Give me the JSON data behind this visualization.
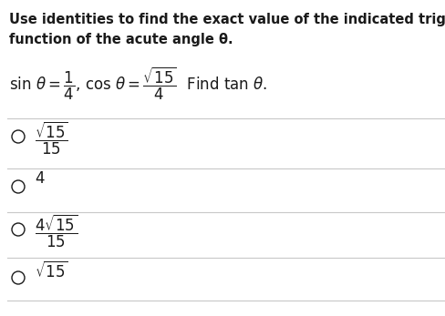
{
  "title_line1": "Use identities to find the exact value of the indicated trigonometric",
  "title_line2": "function of the acute angle θ.",
  "bg_color": "#ffffff",
  "text_color": "#1a1a1a",
  "title_fontsize": 10.5,
  "question_fontsize": 12,
  "option_fontsize": 12,
  "line_color": "#c8c8c8",
  "fig_width": 4.89,
  "fig_height": 3.47,
  "dpi": 100
}
